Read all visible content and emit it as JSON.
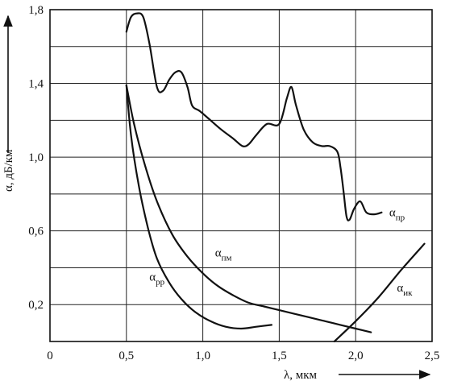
{
  "chart_data": {
    "type": "line",
    "xlabel": "λ, мкм",
    "ylabel": "α, дБ/км",
    "xlim": [
      0,
      2.5
    ],
    "ylim": [
      0,
      1.8
    ],
    "x_ticks": [
      "0",
      "0,5",
      "1,0",
      "1,5",
      "2,0",
      "2,5"
    ],
    "y_ticks": [
      "0,2",
      "0,6",
      "1,0",
      "1,4",
      "1,8"
    ],
    "grid": true,
    "series": [
      {
        "name": "α_пр",
        "label_main": "α",
        "label_sub": "пр",
        "x": [
          0.5,
          0.53,
          0.57,
          0.61,
          0.65,
          0.7,
          0.74,
          0.78,
          0.82,
          0.86,
          0.9,
          0.93,
          0.98,
          1.05,
          1.12,
          1.2,
          1.26,
          1.3,
          1.35,
          1.42,
          1.5,
          1.55,
          1.58,
          1.61,
          1.66,
          1.72,
          1.78,
          1.83,
          1.88,
          1.9,
          1.92,
          1.94,
          1.96,
          1.99,
          2.03,
          2.07,
          2.12,
          2.17
        ],
        "y": [
          1.68,
          1.76,
          1.78,
          1.76,
          1.62,
          1.38,
          1.36,
          1.42,
          1.46,
          1.46,
          1.38,
          1.28,
          1.25,
          1.2,
          1.15,
          1.1,
          1.06,
          1.07,
          1.12,
          1.18,
          1.18,
          1.32,
          1.38,
          1.28,
          1.15,
          1.08,
          1.06,
          1.06,
          1.03,
          0.95,
          0.82,
          0.68,
          0.66,
          0.72,
          0.76,
          0.7,
          0.69,
          0.7
        ]
      },
      {
        "name": "α_пм",
        "label_main": "α",
        "label_sub": "пм",
        "x": [
          0.5,
          0.55,
          0.62,
          0.7,
          0.8,
          0.9,
          1.0,
          1.1,
          1.2,
          1.3,
          1.4,
          1.5,
          1.6,
          1.7,
          1.8,
          1.9,
          2.0,
          2.1
        ],
        "y": [
          1.39,
          1.18,
          0.96,
          0.76,
          0.58,
          0.46,
          0.37,
          0.3,
          0.25,
          0.21,
          0.19,
          0.17,
          0.15,
          0.13,
          0.11,
          0.09,
          0.07,
          0.05
        ]
      },
      {
        "name": "α_рр",
        "label_main": "α",
        "label_sub": "рр",
        "x": [
          0.5,
          0.53,
          0.58,
          0.64,
          0.7,
          0.78,
          0.86,
          0.95,
          1.05,
          1.15,
          1.25,
          1.35,
          1.45
        ],
        "y": [
          1.39,
          1.12,
          0.85,
          0.62,
          0.45,
          0.32,
          0.23,
          0.16,
          0.11,
          0.08,
          0.07,
          0.08,
          0.09
        ]
      },
      {
        "name": "α_ик",
        "label_main": "α",
        "label_sub": "ик",
        "x": [
          1.86,
          2.0,
          2.15,
          2.3,
          2.45
        ],
        "y": [
          0.0,
          0.11,
          0.24,
          0.39,
          0.53
        ]
      }
    ]
  }
}
